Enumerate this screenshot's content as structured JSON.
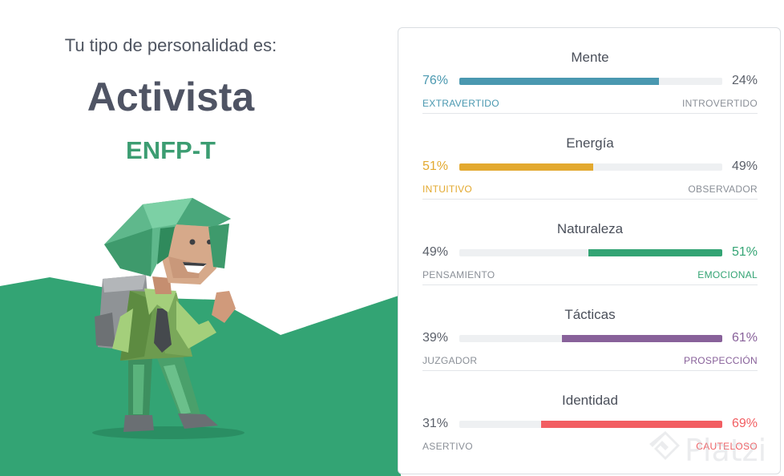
{
  "result": {
    "subtitle": "Tu tipo de personalidad es:",
    "type_name": "Activista",
    "type_code": "ENFP-T"
  },
  "traits": [
    {
      "name": "Mente",
      "left_pct": "76%",
      "right_pct": "24%",
      "left_label": "EXTRAVERTIDO",
      "right_label": "INTROVERTIDO",
      "dominant": "left",
      "fill": 0.76,
      "color": "#4a98b0"
    },
    {
      "name": "Energía",
      "left_pct": "51%",
      "right_pct": "49%",
      "left_label": "INTUITIVO",
      "right_label": "OBSERVADOR",
      "dominant": "left",
      "fill": 0.51,
      "color": "#e3a92f"
    },
    {
      "name": "Naturaleza",
      "left_pct": "49%",
      "right_pct": "51%",
      "left_label": "PENSAMIENTO",
      "right_label": "EMOCIONAL",
      "dominant": "right",
      "fill": 0.51,
      "color": "#33a474"
    },
    {
      "name": "Tácticas",
      "left_pct": "39%",
      "right_pct": "61%",
      "left_label": "JUZGADOR",
      "right_label": "PROSPECCIÓN",
      "dominant": "right",
      "fill": 0.61,
      "color": "#88619a"
    },
    {
      "name": "Identidad",
      "left_pct": "31%",
      "right_pct": "69%",
      "left_label": "ASERTIVO",
      "right_label": "CAUTELOSO",
      "dominant": "right",
      "fill": 0.69,
      "color": "#f25e62"
    }
  ],
  "watermark": {
    "text": "Platzi"
  },
  "colors": {
    "brand_green": "#33a474",
    "neutral_text": "#5a5f69"
  }
}
